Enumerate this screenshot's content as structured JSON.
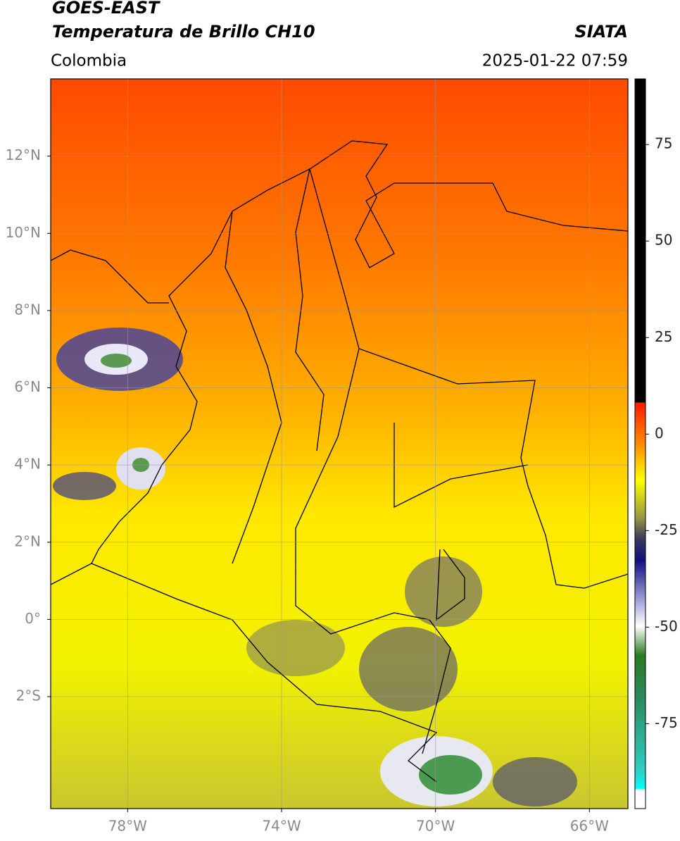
{
  "header": {
    "title": "GOES-EAST",
    "subtitle": "Temperatura de Brillo CH10",
    "org": "SIATA",
    "region": "Colombia",
    "datetime": "2025-01-22 07:59"
  },
  "map": {
    "latlim": [
      -4.9,
      14
    ],
    "lonlim": [
      -80,
      -65
    ],
    "lat_ticks": [
      {
        "value": 12,
        "label": "12°N"
      },
      {
        "value": 10,
        "label": "10°N"
      },
      {
        "value": 8,
        "label": "8°N"
      },
      {
        "value": 6,
        "label": "6°N"
      },
      {
        "value": 4,
        "label": "4°N"
      },
      {
        "value": 2,
        "label": "2°N"
      },
      {
        "value": 0,
        "label": "0°"
      },
      {
        "value": -2,
        "label": "2°S"
      }
    ],
    "lon_ticks": [
      {
        "value": -78,
        "label": "78°W"
      },
      {
        "value": -74,
        "label": "74°W"
      },
      {
        "value": -70,
        "label": "70°W"
      },
      {
        "value": -66,
        "label": "66°W"
      }
    ],
    "grid": true
  },
  "colorbar": {
    "lim": [
      -97,
      92
    ],
    "ticks": [
      75,
      50,
      25,
      0,
      -25,
      -50,
      -75
    ]
  }
}
